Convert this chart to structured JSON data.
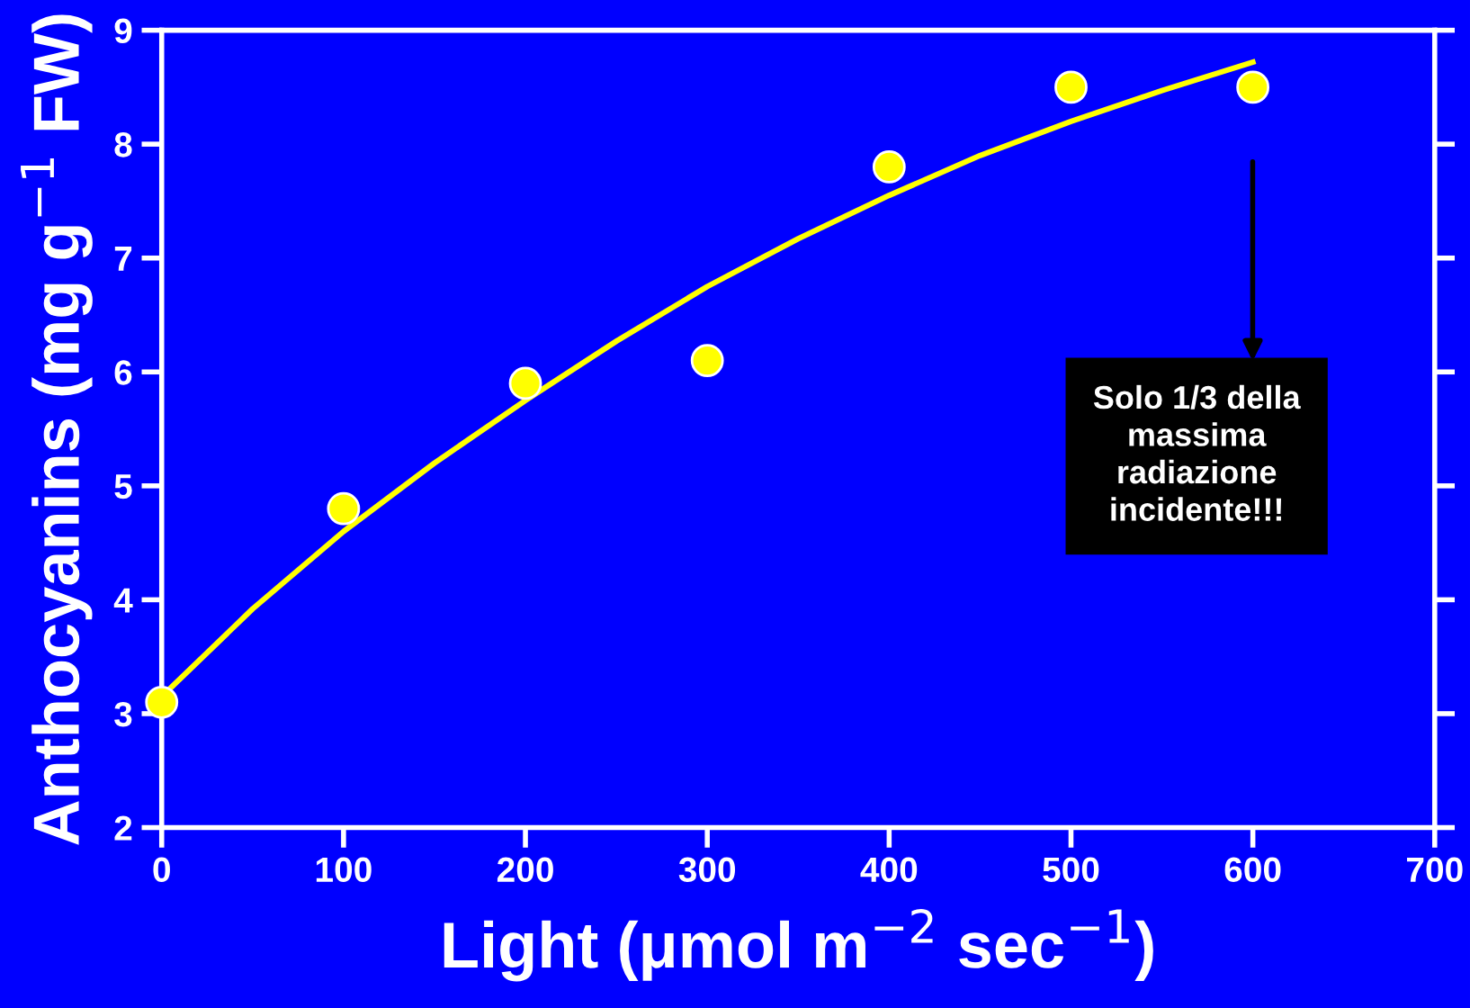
{
  "chart_data": {
    "type": "scatter",
    "xlabel": "Light (μmol m$^{−2}$ sec$^{−1}$)",
    "ylabel": "Anthocyanins (mg g$^{−1}$ FW)",
    "x": [
      0,
      100,
      200,
      300,
      400,
      500,
      600
    ],
    "series": [
      {
        "color": "#ffff00",
        "marker": "circle",
        "values": [
          3.1,
          4.8,
          5.9,
          6.1,
          7.8,
          8.5,
          8.5
        ]
      },
      {
        "type": "line",
        "color": "#ffff00",
        "marker": "none",
        "line_style": "solid",
        "x": [
          0,
          50,
          100,
          150,
          200,
          250,
          300,
          350,
          400,
          450,
          500,
          550,
          600
        ],
        "values": [
          3.15,
          3.92,
          4.6,
          5.2,
          5.75,
          6.27,
          6.75,
          7.17,
          7.55,
          7.9,
          8.2,
          8.47,
          8.72
        ]
      }
    ],
    "annotations": [
      "Solo 1/3 della\nmassima\nradiazione\nincidente!!!"
    ],
    "xlim": [
      0,
      700
    ],
    "xticks": [
      0,
      100,
      200,
      300,
      400,
      500,
      600,
      700
    ],
    "ylim": [
      2,
      9
    ],
    "yticks": [
      2,
      3,
      4,
      5,
      6,
      7,
      8,
      9
    ],
    "grid": false,
    "legend": false
  }
}
